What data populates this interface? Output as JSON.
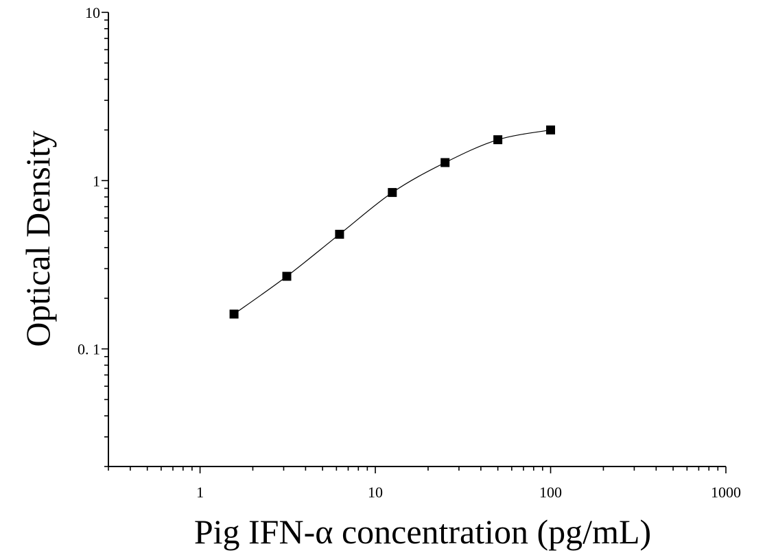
{
  "chart_data": {
    "type": "scatter",
    "title": "",
    "xlabel": "Pig IFN-α concentration (pg/mL)",
    "ylabel": "Optical Density",
    "xscale": "log",
    "yscale": "log",
    "xlim": [
      0.3,
      1000
    ],
    "ylim": [
      0.02,
      10
    ],
    "x_tick_labels": [
      "1",
      "10",
      "100",
      "1000"
    ],
    "y_tick_labels": [
      "0. 1",
      "1",
      "10"
    ],
    "grid": false,
    "legend": "none",
    "series": [
      {
        "marker": "square",
        "fit_line": true,
        "x": [
          1.5625,
          3.125,
          6.25,
          12.5,
          25,
          50,
          100
        ],
        "y": [
          0.161,
          0.27,
          0.48,
          0.85,
          1.28,
          1.75,
          2.0
        ]
      }
    ]
  }
}
